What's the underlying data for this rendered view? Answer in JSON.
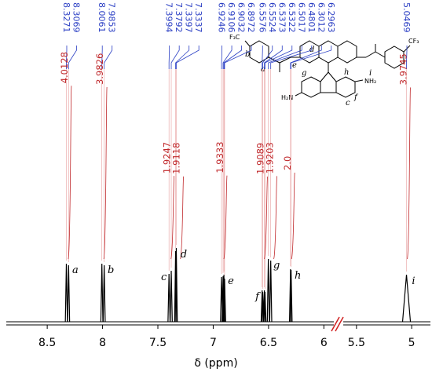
{
  "chart_data": {
    "type": "nmr",
    "xlabel": "δ (ppm)",
    "xlim": [
      8.87,
      5.91
    ],
    "xticks": [
      8.5,
      8,
      7.5,
      7,
      6.5,
      6
    ],
    "x2lim": [
      5.62,
      4.83
    ],
    "x2ticks": [
      5.5,
      5
    ],
    "ylim": [
      0,
      100
    ],
    "color": "#000000",
    "peaks": {
      "color": "#2b3fc4",
      "x": [
        8.3271,
        8.3069,
        8.0061,
        7.9853,
        7.3994,
        7.3792,
        7.3397,
        7.3337,
        6.9246,
        6.9106,
        6.9032,
        6.8972,
        6.5576,
        6.5524,
        6.5373,
        6.5322,
        6.5017,
        6.4801,
        6.3012,
        6.2963,
        5.0469
      ],
      "values": [
        74,
        72,
        74,
        72,
        61,
        65,
        90,
        94,
        57,
        58,
        60,
        55,
        40,
        38,
        40,
        38,
        80,
        78,
        67,
        66,
        60
      ]
    },
    "integrals": {
      "color": "#c0282b",
      "x": [
        8.317,
        7.996,
        7.389,
        7.337,
        6.911,
        6.545,
        6.491,
        6.299,
        5.047
      ],
      "values": [
        4.0128,
        3.9826,
        1.9247,
        1.9118,
        1.9333,
        1.9089,
        1.9203,
        2,
        3.9745
      ],
      "value_labels": [
        "4.0128",
        "3.9826",
        "1.9247",
        "1.9118",
        "1.9333",
        "1.9089",
        "1.9203",
        "2.0",
        "3.9745"
      ]
    },
    "assignments": {
      "x": [
        8.317,
        7.996,
        7.389,
        7.337,
        6.911,
        6.545,
        6.491,
        6.299,
        5.047
      ],
      "labels": [
        "a",
        "b",
        "c",
        "d",
        "e",
        "f",
        "g",
        "h",
        "i"
      ]
    },
    "structure": {
      "groups": [
        "F₃C",
        "CF₃",
        "H₂N",
        "NH₂"
      ],
      "letters": [
        "a",
        "b",
        "d",
        "e",
        "g",
        "h",
        "c",
        "f",
        "i"
      ]
    }
  }
}
